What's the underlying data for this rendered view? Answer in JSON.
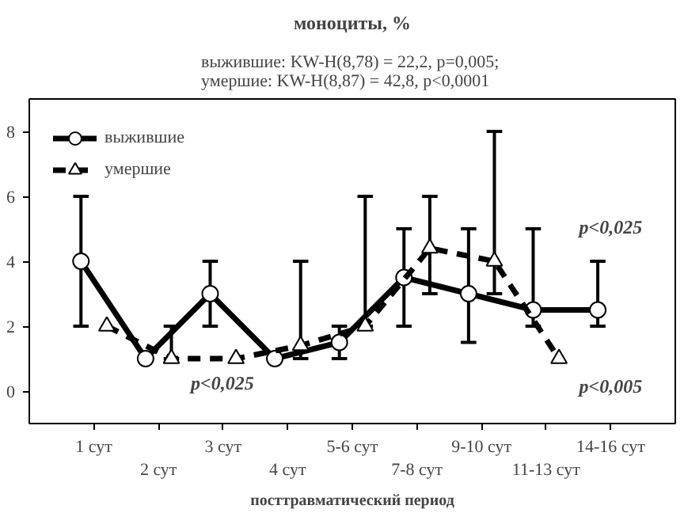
{
  "chart_data": {
    "type": "line",
    "title": "моноциты, %",
    "subtitle": "выжившие:  KW-H(8,78) = 22,2, p=0,005;\nумершие:  KW-H(8,87) = 42,8, p<0,0001",
    "xlabel": "посттравматический период",
    "categories": [
      "1 сут",
      "2 сут",
      "3 сут",
      "4 сут",
      "5-6 сут",
      "7-8 сут",
      "9-10 сут",
      "11-13 сут",
      "14-16 сут"
    ],
    "series": [
      {
        "name": "выжившие",
        "color": "#000000",
        "marker": "circle",
        "line_style": "solid",
        "values": [
          4,
          1,
          3,
          1,
          1.5,
          3.5,
          3,
          2.5,
          2.5
        ],
        "errors": [
          [
            2,
            6
          ],
          null,
          [
            2,
            4
          ],
          null,
          [
            1,
            2
          ],
          [
            2,
            5
          ],
          [
            1.5,
            5
          ],
          [
            2,
            5
          ],
          [
            2,
            4
          ]
        ]
      },
      {
        "name": "умершие",
        "color": "#000000",
        "marker": "triangle",
        "line_style": "dashed",
        "values": [
          2,
          1,
          1,
          1.4,
          2,
          4.4,
          4,
          1,
          null
        ],
        "errors": [
          null,
          [
            1,
            2
          ],
          null,
          [
            1,
            4
          ],
          [
            2,
            6
          ],
          [
            3,
            6
          ],
          [
            3,
            8
          ],
          null,
          null
        ]
      }
    ],
    "ylim": [
      -1,
      9
    ],
    "yticks": [
      0,
      2,
      4,
      6,
      8
    ],
    "grid": false,
    "legend": "top left",
    "annotations": [
      "p<0,025",
      "p<0,025",
      "p<0,005"
    ]
  }
}
